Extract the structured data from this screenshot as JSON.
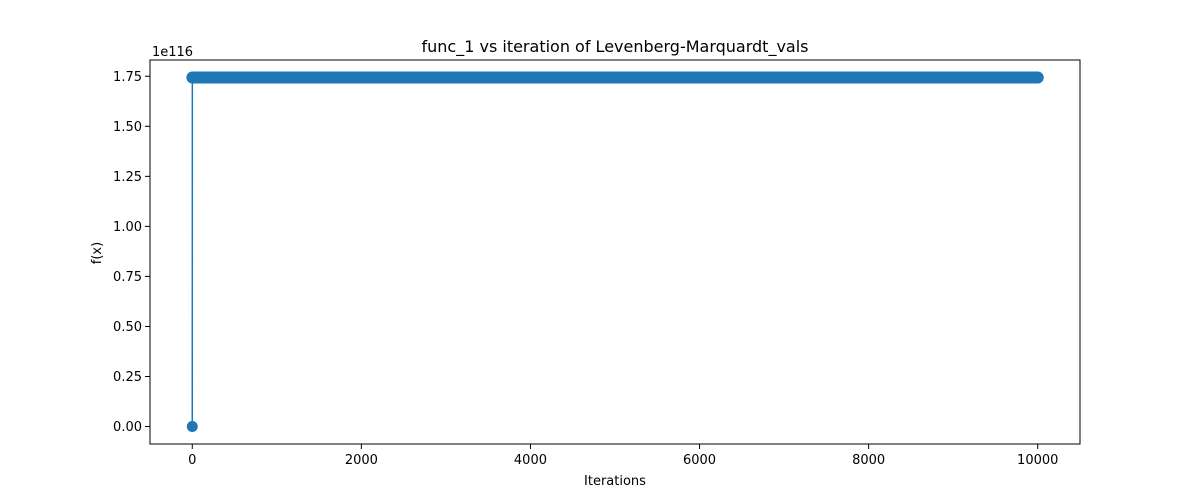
{
  "chart_data": {
    "type": "line",
    "title": "func_1 vs iteration of Levenberg-Marquardt_vals",
    "xlabel": "Iterations",
    "ylabel": "f(x)",
    "y_offset_label": "1e116",
    "y_scale_exponent": 116,
    "xlim": [
      -500,
      10500
    ],
    "ylim": [
      -0.0872,
      1.8312
    ],
    "x_ticks": [
      0,
      2000,
      4000,
      6000,
      8000,
      10000
    ],
    "x_tick_labels": [
      "0",
      "2000",
      "4000",
      "6000",
      "8000",
      "10000"
    ],
    "y_ticks": [
      0,
      0.25,
      0.5,
      0.75,
      1.0,
      1.25,
      1.5,
      1.75
    ],
    "y_tick_labels": [
      "0.00",
      "0.25",
      "0.50",
      "0.75",
      "1.00",
      "1.25",
      "1.50",
      "1.75"
    ],
    "grid": false,
    "legend": "none",
    "marker": "circle",
    "series": [
      {
        "color": "#1f77b4",
        "x": [
          0,
          1,
          10000
        ],
        "y": [
          0,
          1.744,
          1.744
        ],
        "note_points_dense": "markers at every iteration from 1 to 10000"
      }
    ]
  }
}
